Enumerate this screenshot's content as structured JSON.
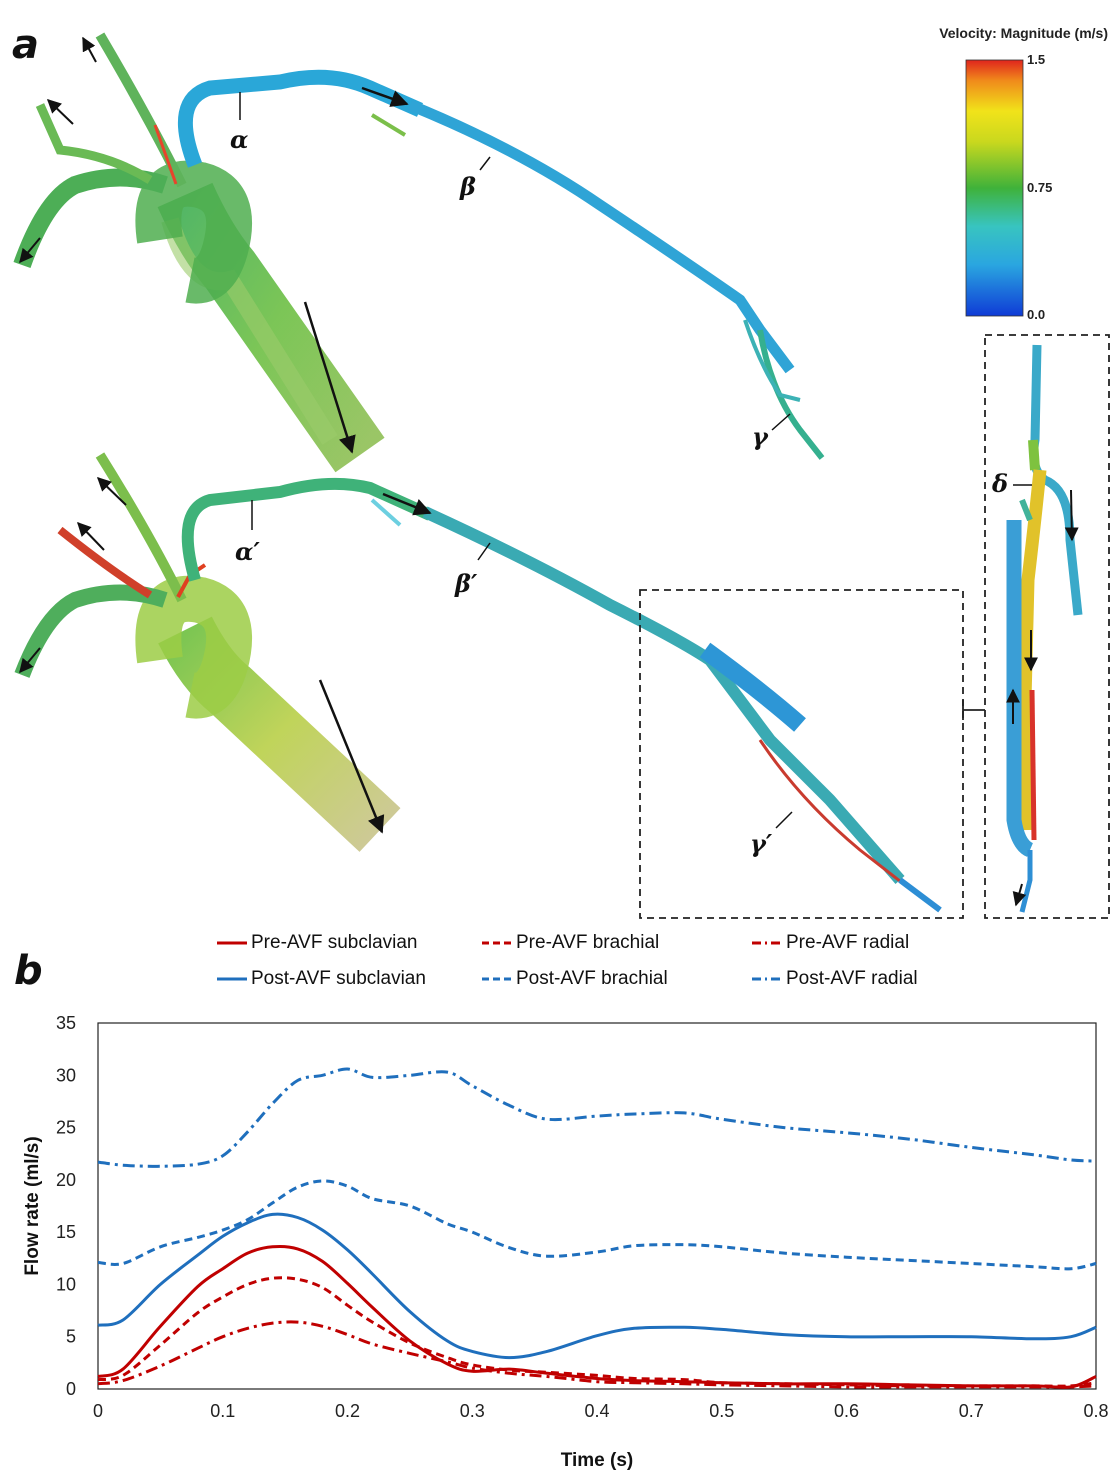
{
  "panel_a": {
    "letter": "a",
    "colorbar": {
      "title": "Velocity: Magnitude (m/s)",
      "max_label": "1.5",
      "mid_label": "0.75",
      "min_label": "0.0"
    },
    "labels": {
      "pre_alpha": "α",
      "pre_beta": "β",
      "pre_gamma": "γ",
      "post_alpha": "α′",
      "post_beta": "β′",
      "post_gamma": "γ′",
      "delta": "δ"
    }
  },
  "panel_b": {
    "letter": "b"
  },
  "colors": {
    "pre": "#c00000",
    "post": "#1f6fbd"
  },
  "legend": {
    "pre_subclavian": "Pre-AVF subclavian",
    "pre_brachial": "Pre-AVF brachial",
    "pre_radial": "Pre-AVF radial",
    "post_subclavian": "Post-AVF subclavian",
    "post_brachial": "Post-AVF brachial",
    "post_radial": "Post-AVF radial"
  },
  "chart_data": {
    "type": "line",
    "xlabel": "Time (s)",
    "ylabel": "Flow rate (ml/s)",
    "xlim": [
      0,
      0.8
    ],
    "ylim": [
      0,
      35
    ],
    "xticks": [
      "0",
      "0.1",
      "0.2",
      "0.3",
      "0.4",
      "0.5",
      "0.6",
      "0.7",
      "0.8"
    ],
    "yticks": [
      "0",
      "5",
      "10",
      "15",
      "20",
      "25",
      "30",
      "35"
    ],
    "x": [
      0,
      0.02,
      0.05,
      0.08,
      0.1,
      0.12,
      0.14,
      0.16,
      0.18,
      0.2,
      0.22,
      0.25,
      0.28,
      0.3,
      0.33,
      0.36,
      0.4,
      0.43,
      0.47,
      0.5,
      0.55,
      0.6,
      0.65,
      0.7,
      0.75,
      0.78,
      0.8
    ],
    "series": [
      {
        "name": "Pre-AVF subclavian",
        "color": "#c00000",
        "dash": "solid",
        "values": [
          1.2,
          1.9,
          6.0,
          9.8,
          11.5,
          13.0,
          13.6,
          13.4,
          12.2,
          10.1,
          7.8,
          4.6,
          2.4,
          1.7,
          1.9,
          1.5,
          1.0,
          0.8,
          0.7,
          0.6,
          0.5,
          0.5,
          0.4,
          0.3,
          0.3,
          0.2,
          1.2
        ]
      },
      {
        "name": "Pre-AVF brachial",
        "color": "#c00000",
        "dash": "dashed",
        "values": [
          0.9,
          1.3,
          4.2,
          7.3,
          8.8,
          10.0,
          10.6,
          10.5,
          9.7,
          8.0,
          6.4,
          4.4,
          3.0,
          2.3,
          1.8,
          1.6,
          1.3,
          1.0,
          0.9,
          0.6,
          0.5,
          0.4,
          0.3,
          0.3,
          0.3,
          0.3,
          0.6
        ]
      },
      {
        "name": "Pre-AVF radial",
        "color": "#c00000",
        "dash": "dashdot",
        "values": [
          0.5,
          0.8,
          2.2,
          3.9,
          5.0,
          5.8,
          6.3,
          6.4,
          6.0,
          5.2,
          4.3,
          3.4,
          2.6,
          2.0,
          1.5,
          1.2,
          0.7,
          0.6,
          0.5,
          0.4,
          0.3,
          0.2,
          0.2,
          0.2,
          0.2,
          0.2,
          0.3
        ]
      },
      {
        "name": "Post-AVF subclavian",
        "color": "#1f6fbd",
        "dash": "solid",
        "values": [
          6.1,
          6.6,
          10.0,
          12.8,
          14.6,
          15.9,
          16.7,
          16.4,
          15.2,
          13.3,
          11.0,
          7.4,
          4.6,
          3.6,
          3.0,
          3.6,
          5.1,
          5.8,
          5.9,
          5.7,
          5.2,
          5.0,
          5.0,
          5.0,
          4.8,
          5.0,
          5.9
        ]
      },
      {
        "name": "Post-AVF brachial",
        "color": "#1f6fbd",
        "dash": "dashed",
        "values": [
          12.1,
          12.0,
          13.6,
          14.5,
          15.2,
          16.2,
          17.8,
          19.3,
          19.9,
          19.4,
          18.2,
          17.5,
          15.8,
          15.0,
          13.5,
          12.7,
          13.1,
          13.7,
          13.8,
          13.6,
          13.0,
          12.6,
          12.3,
          12.0,
          11.7,
          11.5,
          12.0
        ]
      },
      {
        "name": "Post-AVF radial",
        "color": "#1f6fbd",
        "dash": "dashdot",
        "values": [
          21.7,
          21.4,
          21.3,
          21.5,
          22.3,
          24.6,
          27.3,
          29.5,
          30.0,
          30.6,
          29.8,
          30.0,
          30.3,
          29.0,
          27.1,
          25.8,
          26.1,
          26.3,
          26.4,
          25.8,
          25.0,
          24.5,
          23.9,
          23.1,
          22.4,
          21.9,
          21.8
        ]
      }
    ]
  }
}
